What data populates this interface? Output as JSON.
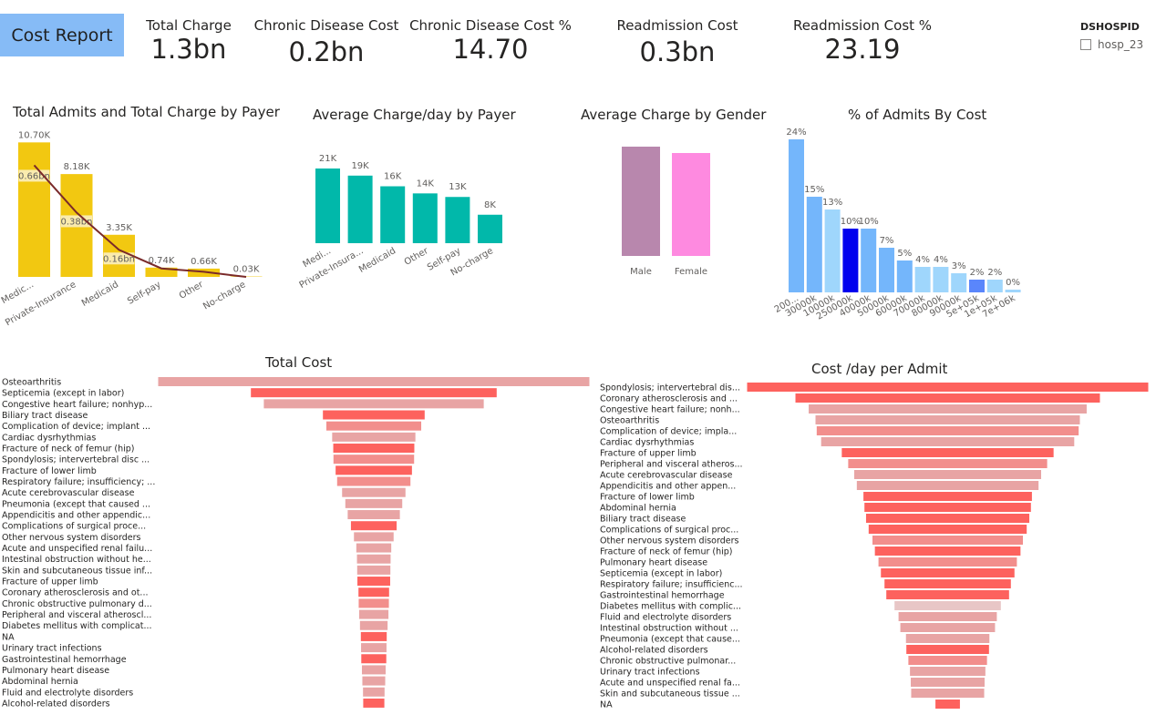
{
  "header": {
    "report_button": "Cost Report"
  },
  "kpis": [
    {
      "label": "Total Charge",
      "value": "1.3bn"
    },
    {
      "label": "Chronic Disease Cost",
      "value": "0.2bn"
    },
    {
      "label": "Chronic Disease Cost %",
      "value": "14.70"
    },
    {
      "label": "Readmission Cost",
      "value": "0.3bn"
    },
    {
      "label": "Readmission Cost %",
      "value": "23.19"
    }
  ],
  "slicer": {
    "title": "DSHOSPID",
    "items": [
      "hosp_23"
    ]
  },
  "colors": {
    "payer_bar": "#f2c811",
    "payer_line": "#7a2a2a",
    "avg_payer_bar": "#01b8aa",
    "gender_male": "#b887ad",
    "gender_female": "#fe8ae0",
    "funnel_dark": "#fd625e",
    "funnel_light": "#e8a4a4"
  },
  "chart_data": [
    {
      "type": "bar",
      "title": "Total Admits and Total Charge by Payer",
      "categories": [
        "Medic...",
        "Private-Insurance",
        "Medicaid",
        "Self-pay",
        "Other",
        "No-charge"
      ],
      "series": [
        {
          "values": [
            10700,
            8180,
            3350,
            740,
            660,
            30
          ],
          "labels": [
            "10.70K",
            "8.18K",
            "3.35K",
            "0.74K",
            "0.66K",
            "0.03K"
          ]
        },
        {
          "values": [
            0.66,
            0.38,
            0.16,
            0.05,
            0.03,
            0.0
          ],
          "labels": [
            "0.66bn",
            "0.38bn",
            "0.16bn",
            "",
            "",
            ""
          ]
        }
      ]
    },
    {
      "type": "bar",
      "title": "Average Charge/day by Payer",
      "categories": [
        "Medi...",
        "Private-Insura...",
        "Medicaid",
        "Other",
        "Self-pay",
        "No-charge"
      ],
      "values": [
        21000,
        19000,
        16000,
        14000,
        13000,
        8000
      ],
      "labels": [
        "21K",
        "19K",
        "16K",
        "14K",
        "13K",
        "8K"
      ]
    },
    {
      "type": "bar",
      "title": "Average Charge by Gender",
      "categories": [
        "Male",
        "Female"
      ],
      "values": [
        120,
        113
      ]
    },
    {
      "type": "bar",
      "title": "% of Admits By Cost",
      "categories": [
        "200...",
        "30000k",
        "10000k",
        "250000k",
        "40000k",
        "50000k",
        "60000k",
        "70000k",
        "80000k",
        "90000k",
        "5e+05k",
        "1e+05k",
        "7e+06k"
      ],
      "values": [
        24,
        15,
        13,
        10,
        10,
        7,
        5,
        4,
        4,
        3,
        2,
        2,
        0
      ],
      "labels": [
        "24%",
        "15%",
        "13%",
        "10%",
        "10%",
        "7%",
        "5%",
        "4%",
        "4%",
        "3%",
        "2%",
        "2%",
        "0%"
      ],
      "colors": [
        "#74b6fb",
        "#74b6fb",
        "#9fd6fc",
        "#0000ee",
        "#74b6fb",
        "#74b6fb",
        "#74b6fb",
        "#9fd6fc",
        "#9fd6fc",
        "#9fd6fc",
        "#5a86fb",
        "#9fd6fc",
        "#9fd6fc"
      ]
    },
    {
      "type": "bar",
      "title": "Total Cost",
      "categories": [
        "Osteoarthritis",
        "Septicemia (except in labor)",
        "Congestive heart failure; nonhyp...",
        "Biliary tract disease",
        "Complication of device; implant ...",
        "Cardiac dysrhythmias",
        "Fracture of neck of femur (hip)",
        "Spondylosis; intervertebral disc ...",
        "Fracture of lower limb",
        "Respiratory failure; insufficiency; ...",
        "Acute cerebrovascular disease",
        "Pneumonia (except that caused ...",
        "Appendicitis and other appendic...",
        "Complications of surgical proce...",
        "Other nervous system disorders",
        "Acute and unspecified renal failu...",
        "Intestinal obstruction without he...",
        "Skin and subcutaneous tissue inf...",
        "Fracture of upper limb",
        "Coronary atherosclerosis and ot...",
        "Chronic obstructive pulmonary d...",
        "Peripheral and visceral atheroscl...",
        "Diabetes mellitus with complicat...",
        "NA",
        "Urinary tract infections",
        "Gastrointestinal hemorrhage",
        "Pulmonary heart disease",
        "Abdominal hernia",
        "Fluid and electrolyte disorders",
        "Alcohol-related disorders"
      ],
      "values": [
        100,
        57,
        51,
        23.6,
        22,
        19.3,
        18.8,
        18.7,
        17.7,
        17,
        14.7,
        13.2,
        12.1,
        10.6,
        9.2,
        8.1,
        7.8,
        7.7,
        7.6,
        7.1,
        7,
        6.8,
        6.4,
        6,
        5.9,
        5.8,
        5.5,
        5.3,
        5,
        4.9
      ],
      "colors": [
        "#e8a4a4",
        "#fd625e",
        "#e8a4a4",
        "#fd625e",
        "#f28e8c",
        "#e8a4a4",
        "#fd625e",
        "#f28e8c",
        "#fd625e",
        "#f28e8c",
        "#e8a4a4",
        "#e8a4a4",
        "#e8a4a4",
        "#fd625e",
        "#e8a4a4",
        "#e8a4a4",
        "#e8a4a4",
        "#e8a4a4",
        "#fd625e",
        "#fd625e",
        "#f28e8c",
        "#e8a4a4",
        "#e8a4a4",
        "#fd625e",
        "#e8a4a4",
        "#fd625e",
        "#e8a4a4",
        "#e8a4a4",
        "#e8a4a4",
        "#fd625e"
      ]
    },
    {
      "type": "bar",
      "title": "Cost /day per Admit",
      "categories": [
        "Spondylosis; intervertebral dis...",
        "Coronary atherosclerosis and ...",
        "Congestive heart failure; nonh...",
        "Osteoarthritis",
        "Complication of device; impla...",
        "Cardiac dysrhythmias",
        "Fracture of upper limb",
        "Peripheral and visceral atheros...",
        "Acute cerebrovascular disease",
        "Appendicitis and other appen...",
        "Fracture of lower limb",
        "Abdominal hernia",
        "Biliary tract disease",
        "Complications of surgical proc...",
        "Other nervous system disorders",
        "Fracture of neck of femur (hip)",
        "Pulmonary heart disease",
        "Septicemia (except in labor)",
        "Respiratory failure; insufficienc...",
        "Gastrointestinal hemorrhage",
        "Diabetes mellitus with complic...",
        "Fluid and electrolyte disorders",
        "Intestinal obstruction without ...",
        "Pneumonia (except that cause...",
        "Alcohol-related disorders",
        "Chronic obstructive pulmonar...",
        "Urinary tract infections",
        "Acute and unspecified renal fa...",
        "Skin and subcutaneous tissue ...",
        "NA"
      ],
      "values": [
        100,
        75.9,
        69.3,
        65.9,
        65.3,
        63.1,
        52.8,
        49.6,
        46.6,
        45.3,
        42,
        41.5,
        40.7,
        39.4,
        37.5,
        36.3,
        34.5,
        33.3,
        31.5,
        30.6,
        26.5,
        24.5,
        23.6,
        20.8,
        20.6,
        19.6,
        18.8,
        18.4,
        18.2,
        6.1
      ],
      "colors": [
        "#fd625e",
        "#fd625e",
        "#e8a4a4",
        "#e8a4a4",
        "#f28e8c",
        "#e8a4a4",
        "#fd625e",
        "#f28e8c",
        "#e8a4a4",
        "#e8a4a4",
        "#fd625e",
        "#fd625e",
        "#fd625e",
        "#fd625e",
        "#f28e8c",
        "#fd625e",
        "#f28e8c",
        "#fd625e",
        "#fd625e",
        "#fd625e",
        "#e8c6c6",
        "#e8a4a4",
        "#e8a4a4",
        "#e8a4a4",
        "#fd625e",
        "#f28e8c",
        "#e8a4a4",
        "#e8a4a4",
        "#e8a4a4",
        "#fd625e"
      ]
    }
  ]
}
